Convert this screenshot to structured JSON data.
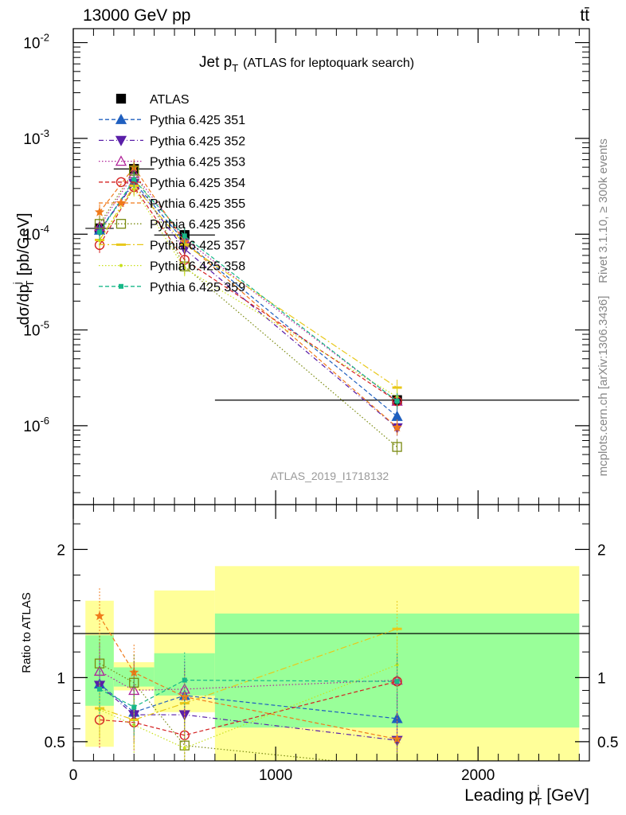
{
  "header": {
    "left": "13000 GeV pp",
    "right": "tt̄"
  },
  "side_labels": {
    "rivet": "Rivet 3.1.10, ≥ 300k events",
    "mcplots": "mcplots.cern.ch [arXiv:1306.3436]"
  },
  "colors": {
    "ATLAS": "#000000",
    "351": "#1f5fbf",
    "352": "#5a1fa8",
    "353": "#b0239a",
    "354": "#d42020",
    "355": "#f07a1a",
    "356": "#7a8a10",
    "357": "#e8c81a",
    "358": "#c8e01a",
    "359": "#18b888",
    "band_inner": "#99ff99",
    "band_outer": "#ffff99"
  },
  "chart_data": [
    {
      "type": "line",
      "title_main": "Jet p",
      "title_sub": "T",
      "title_rest": "(ATLAS for leptoquark search)",
      "ylabel": "dσ/dp",
      "ylabel_sup": "j",
      "ylabel_sub": "T",
      "ylabel_units": "[pb/GeV]",
      "yscale": "log",
      "ylim": [
        1.5e-07,
        0.014
      ],
      "xlim": [
        0,
        2550
      ],
      "y_tick_labels": [
        "10",
        "10",
        "10",
        "10",
        "10"
      ],
      "y_tick_exponents": [
        "-2",
        "-3",
        "-4",
        "-5",
        "-6"
      ],
      "watermark": "ATLAS_2019_I1718132",
      "bin_edges": [
        60,
        200,
        400,
        700,
        2500
      ],
      "x": [
        130,
        300,
        550,
        1600
      ],
      "series": [
        {
          "name": "ATLAS",
          "key": "ATLAS",
          "values": [
            0.000115,
            0.00048,
            9.8e-05,
            1.85e-06
          ]
        },
        {
          "name": "Pythia 6.425 351",
          "key": "351",
          "values": [
            0.00011,
            0.00035,
            8.4e-05,
            1.25e-06
          ]
        },
        {
          "name": "Pythia 6.425 352",
          "key": "352",
          "values": [
            0.000108,
            0.00034,
            7e-05,
            9.5e-07
          ]
        },
        {
          "name": "Pythia 6.425 353",
          "key": "353",
          "values": [
            0.00012,
            0.00043,
            8.9e-05,
            1.8e-06
          ]
        },
        {
          "name": "Pythia 6.425 354",
          "key": "354",
          "values": [
            7.7e-05,
            0.00031,
            5.4e-05,
            1.8e-06
          ]
        },
        {
          "name": "Pythia 6.425 355",
          "key": "355",
          "values": [
            0.00017,
            0.0005,
            8.3e-05,
            9.6e-07
          ]
        },
        {
          "name": "Pythia 6.425 356",
          "key": "356",
          "values": [
            0.000128,
            0.00046,
            4.6e-05,
            6e-07
          ]
        },
        {
          "name": "Pythia 6.425 357",
          "key": "357",
          "values": [
            8.7e-05,
            0.00032,
            7.8e-05,
            2.5e-06
          ]
        },
        {
          "name": "Pythia 6.425 358",
          "key": "358",
          "values": [
            8.6e-05,
            0.0003,
            4.4e-05,
            2e-06
          ]
        },
        {
          "name": "Pythia 6.425 359",
          "key": "359",
          "values": [
            0.000105,
            0.00037,
            9.6e-05,
            1.8e-06
          ]
        }
      ]
    },
    {
      "type": "line",
      "ylabel": "Ratio to ATLAS",
      "xlabel_main": "Leading p",
      "xlabel_sup": "j",
      "xlabel_sub": "T",
      "xlabel_units": "[GeV]",
      "xlim": [
        0,
        2550
      ],
      "ylim": [
        0.35,
        2.35
      ],
      "x_tick_labels": [
        "0",
        "1000",
        "2000"
      ],
      "x_tick_values": [
        0,
        1000,
        2000
      ],
      "y_tick_labels": [
        "0.5",
        "1",
        "2"
      ],
      "y_tick_values": [
        0.5,
        1,
        2
      ],
      "band_inner": [
        [
          0.78,
          1.33
        ],
        [
          0.93,
          1.08
        ],
        [
          0.86,
          1.19
        ],
        [
          0.61,
          1.5
        ]
      ],
      "band_outer": [
        [
          0.46,
          1.6
        ],
        [
          0.9,
          1.12
        ],
        [
          0.73,
          1.68
        ],
        [
          0.35,
          1.87
        ]
      ],
      "series": [
        {
          "key": "351",
          "values": [
            0.95,
            0.73,
            0.86,
            0.68
          ]
        },
        {
          "key": "352",
          "values": [
            0.94,
            0.71,
            0.71,
            0.51
          ]
        },
        {
          "key": "353",
          "values": [
            1.05,
            0.9,
            0.91,
            0.98
          ]
        },
        {
          "key": "354",
          "values": [
            0.67,
            0.65,
            0.55,
            0.97
          ]
        },
        {
          "key": "355",
          "values": [
            1.48,
            1.04,
            0.85,
            0.52
          ]
        },
        {
          "key": "356",
          "values": [
            1.11,
            0.96,
            0.47,
            0.3
          ]
        },
        {
          "key": "357",
          "values": [
            0.76,
            0.67,
            0.8,
            1.38
          ]
        },
        {
          "key": "358",
          "values": [
            0.75,
            0.63,
            0.45,
            1.1
          ]
        },
        {
          "key": "359",
          "values": [
            0.91,
            0.77,
            0.98,
            0.97
          ]
        }
      ]
    }
  ]
}
